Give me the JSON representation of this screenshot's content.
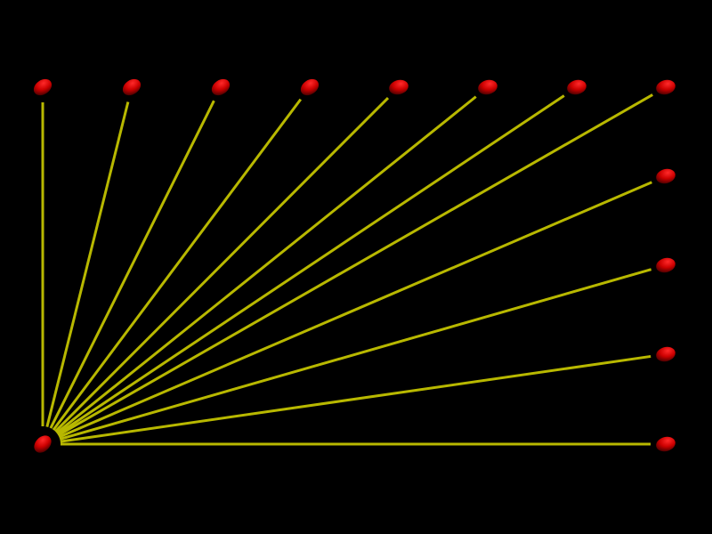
{
  "scene": {
    "background_color": "#000000",
    "line_color": "#b8b800",
    "node_color": "#cc0000",
    "hub_node": "bottom-left",
    "spoke_count": 12,
    "node_count": 13
  }
}
